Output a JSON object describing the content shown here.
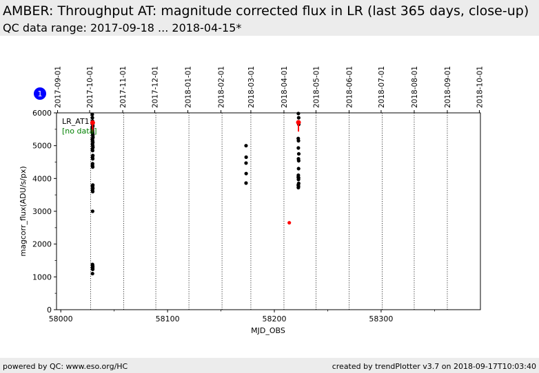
{
  "header": {
    "title": "AMBER: Throughput AT: magnitude corrected flux in LR (last 365 days, close-up)",
    "subtitle": "QC data range: 2017-09-18 ... 2018-04-15*"
  },
  "footer": {
    "left": "powered by QC: www.eso.org/HC",
    "right": "created by trendPlotter v3.7 on 2018-09-17T10:03:40"
  },
  "plot": {
    "badge": "1",
    "legend_label": "LR_AT1",
    "no_data_label": "[no data]"
  },
  "colors": {
    "header_bg": "#ececec",
    "points": "#000000",
    "highlight": "#ff0000",
    "no_data": "#008000",
    "badge": "#0000ff"
  },
  "chart_data": {
    "type": "scatter",
    "xlabel": "MJD_OBS",
    "ylabel": "magcorr_flux(ADU/s/px)",
    "xlim": [
      57996,
      58393
    ],
    "ylim": [
      0,
      6000
    ],
    "x_ticks": [
      58000,
      58100,
      58200,
      58300
    ],
    "y_ticks": [
      0,
      1000,
      2000,
      3000,
      4000,
      5000,
      6000
    ],
    "top_date_ticks": [
      {
        "label": "2017-09-01",
        "mjd": 57997
      },
      {
        "label": "2017-10-01",
        "mjd": 58027
      },
      {
        "label": "2017-11-01",
        "mjd": 58058
      },
      {
        "label": "2017-12-01",
        "mjd": 58088
      },
      {
        "label": "2018-01-01",
        "mjd": 58119
      },
      {
        "label": "2018-02-01",
        "mjd": 58150
      },
      {
        "label": "2018-03-01",
        "mjd": 58178
      },
      {
        "label": "2018-04-01",
        "mjd": 58209
      },
      {
        "label": "2018-05-01",
        "mjd": 58239
      },
      {
        "label": "2018-06-01",
        "mjd": 58270
      },
      {
        "label": "2018-07-01",
        "mjd": 58300
      },
      {
        "label": "2018-08-01",
        "mjd": 58331
      },
      {
        "label": "2018-09-01",
        "mjd": 58362
      },
      {
        "label": "2018-10-01",
        "mjd": 58392
      }
    ],
    "series": [
      {
        "name": "LR_AT1",
        "color": "#000000",
        "x": [
          58029.5,
          58029.6,
          58029.7,
          58029.8,
          58029.9,
          58030.0,
          58029.5,
          58029.6,
          58029.7,
          58029.8,
          58029.9,
          58030.0,
          58030.1,
          58029.6,
          58029.8,
          58030.0,
          58029.7,
          58029.9,
          58030.1,
          58029.6,
          58029.8,
          58030.0,
          58029.7,
          58029.9,
          58029.8,
          58029.7,
          58029.9,
          58030.0,
          58029.6,
          58029.8,
          58030.0,
          58029.7,
          58029.9,
          58029.8,
          58029.7,
          58029.9,
          58029.8,
          58029.9,
          58029.7,
          58029.8,
          58029.9,
          58029.8,
          58029.9,
          58029.7,
          58173.5,
          58173.6,
          58173.5,
          58173.6,
          58173.5,
          58222.5,
          58222.8,
          58222.9,
          58222.4,
          58222.6,
          58222.5,
          58222.9,
          58222.6,
          58222.8,
          58222.7,
          58222.5,
          58222.4,
          58222.7,
          58222.6,
          58222.8,
          58222.4,
          58222.6,
          58222.5
        ],
        "y": [
          5950,
          5850,
          5750,
          5700,
          5650,
          5600,
          5550,
          5500,
          5450,
          5400,
          5350,
          5300,
          5250,
          5200,
          5150,
          5100,
          5050,
          5000,
          4950,
          4900,
          4850,
          4700,
          4650,
          4600,
          4450,
          4400,
          4350,
          3800,
          3780,
          3750,
          3700,
          3650,
          3600,
          3000,
          1380,
          1320,
          1280,
          1250,
          1100,
          1350,
          1300,
          1260,
          1230,
          1290,
          5000,
          4650,
          4470,
          4150,
          3860,
          5980,
          5850,
          5650,
          5220,
          5150,
          4930,
          4750,
          4600,
          4540,
          4300,
          4100,
          4040,
          4020,
          3970,
          3850,
          3800,
          3760,
          3720
        ]
      },
      {
        "name": "",
        "color": "#ff0000",
        "x": [
          58029.8,
          58214,
          58222.6
        ],
        "y": [
          5700,
          2650,
          5710
        ],
        "yerr_up": [
          0,
          0,
          0
        ],
        "yerr_down": [
          280,
          0,
          280
        ]
      }
    ],
    "vlines_mjd": [
      58028,
      58059,
      58089,
      58120,
      58151,
      58178,
      58209,
      58239,
      58270,
      58301,
      58331,
      58362,
      58393
    ],
    "grid": false
  }
}
